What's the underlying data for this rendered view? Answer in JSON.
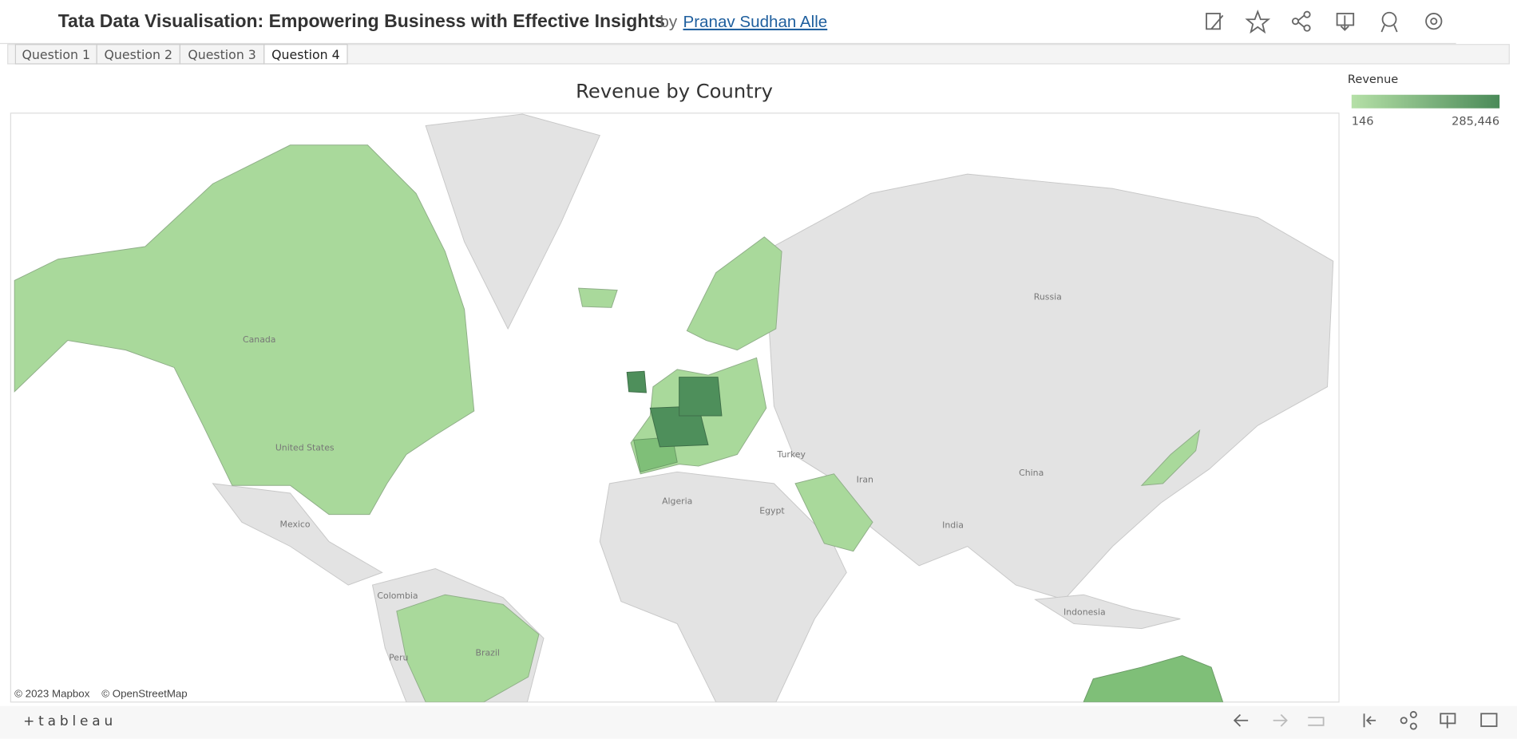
{
  "header": {
    "title": "Tata Data Visualisation: Empowering Business with Effective Insights",
    "by": "by",
    "author": "Pranav Sudhan Alle"
  },
  "tabs": [
    "Question 1",
    "Question 2",
    "Question 3",
    "Question 4"
  ],
  "map": {
    "title": "Revenue by Country",
    "labels": [
      "Russia",
      "Canada",
      "United States",
      "Mexico",
      "Colombia",
      "Peru",
      "Brazil",
      "Algeria",
      "Egypt",
      "Turkey",
      "Iran",
      "India",
      "China",
      "Indonesia"
    ],
    "attribution": [
      "© 2023 Mapbox",
      "© OpenStreetMap"
    ]
  },
  "legend": {
    "title": "Revenue",
    "min": "146",
    "max": "285,446"
  },
  "footer": {
    "logo": "+tableau"
  }
}
